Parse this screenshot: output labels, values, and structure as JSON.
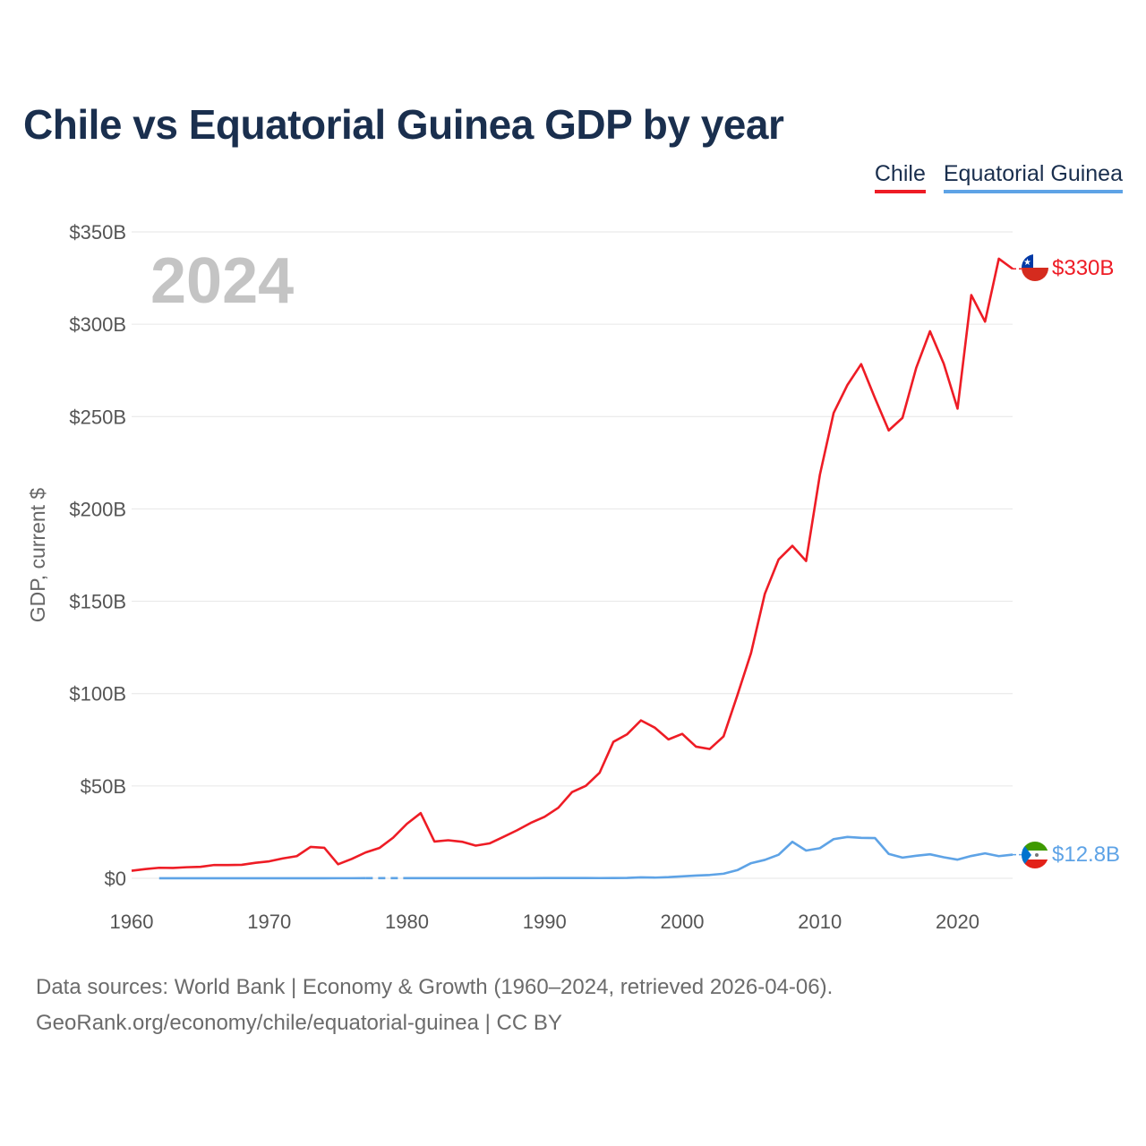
{
  "title": "Chile vs Equatorial Guinea GDP by year",
  "legend": [
    {
      "name": "Chile",
      "color": "#ee1c25"
    },
    {
      "name": "Equatorial Guinea",
      "color": "#5ea3e6"
    }
  ],
  "chart_data": {
    "type": "line",
    "title": "Chile vs Equatorial Guinea GDP by year",
    "xlabel": "",
    "ylabel": "GDP, current $",
    "xlim": [
      1960,
      2024
    ],
    "ylim": [
      0,
      350
    ],
    "y_unit": "billions USD",
    "grid": true,
    "legend_position": "top-right",
    "current_year_label": "2024",
    "x_ticks": [
      1960,
      1970,
      1980,
      1990,
      2000,
      2010,
      2020
    ],
    "x_tick_labels": [
      "1960",
      "1970",
      "1980",
      "1990",
      "2000",
      "2010",
      "2020"
    ],
    "y_ticks": [
      0,
      50,
      100,
      150,
      200,
      250,
      300,
      350
    ],
    "y_tick_labels": [
      "$0",
      "$50B",
      "$100B",
      "$150B",
      "$200B",
      "$250B",
      "$300B",
      "$350B"
    ],
    "series": [
      {
        "name": "Chile",
        "color": "#ee1c25",
        "end_label": "$330B",
        "x": [
          1960,
          1961,
          1962,
          1963,
          1964,
          1965,
          1966,
          1967,
          1968,
          1969,
          1970,
          1971,
          1972,
          1973,
          1974,
          1975,
          1976,
          1977,
          1978,
          1979,
          1980,
          1981,
          1982,
          1983,
          1984,
          1985,
          1986,
          1987,
          1988,
          1989,
          1990,
          1991,
          1992,
          1993,
          1994,
          1995,
          1996,
          1997,
          1998,
          1999,
          2000,
          2001,
          2002,
          2003,
          2004,
          2005,
          2006,
          2007,
          2008,
          2009,
          2010,
          2011,
          2012,
          2013,
          2014,
          2015,
          2016,
          2017,
          2018,
          2019,
          2020,
          2021,
          2022,
          2023,
          2024
        ],
        "values": [
          4.1,
          5.0,
          5.7,
          5.6,
          6.0,
          6.2,
          7.2,
          7.2,
          7.3,
          8.4,
          9.2,
          10.8,
          12.0,
          17.0,
          16.5,
          7.6,
          10.5,
          14.0,
          16.4,
          22.0,
          29.5,
          35.3,
          19.9,
          20.6,
          19.8,
          17.7,
          18.9,
          22.4,
          26.0,
          30.0,
          33.3,
          38.2,
          46.7,
          50.1,
          57.2,
          73.9,
          78.0,
          85.5,
          81.6,
          75.2,
          78.2,
          71.3,
          70.0,
          76.8,
          99.0,
          122.0,
          154.0,
          172.6,
          180.0,
          171.8,
          218.5,
          252.0,
          267.1,
          278.4,
          260.0,
          242.5,
          249.3,
          276.4,
          296.2,
          278.6,
          254.3,
          315.8,
          301.4,
          335.5,
          330.0
        ]
      },
      {
        "name": "Equatorial Guinea",
        "color": "#5ea3e6",
        "end_label": "$12.8B",
        "gap_years": [
          1978,
          1979
        ],
        "x": [
          1962,
          1963,
          1964,
          1965,
          1966,
          1967,
          1968,
          1969,
          1970,
          1971,
          1972,
          1973,
          1974,
          1975,
          1976,
          1977,
          1978,
          1979,
          1980,
          1981,
          1982,
          1983,
          1984,
          1985,
          1986,
          1987,
          1988,
          1989,
          1990,
          1991,
          1992,
          1993,
          1994,
          1995,
          1996,
          1997,
          1998,
          1999,
          2000,
          2001,
          2002,
          2003,
          2004,
          2005,
          2006,
          2007,
          2008,
          2009,
          2010,
          2011,
          2012,
          2013,
          2014,
          2015,
          2016,
          2017,
          2018,
          2019,
          2020,
          2021,
          2022,
          2023,
          2024
        ],
        "values": [
          0.03,
          0.03,
          0.03,
          0.04,
          0.04,
          0.04,
          0.04,
          0.04,
          0.04,
          0.04,
          0.05,
          0.05,
          0.05,
          0.06,
          0.06,
          0.07,
          0.07,
          0.07,
          0.08,
          0.08,
          0.08,
          0.08,
          0.08,
          0.09,
          0.1,
          0.1,
          0.1,
          0.1,
          0.13,
          0.13,
          0.16,
          0.15,
          0.12,
          0.14,
          0.23,
          0.5,
          0.37,
          0.62,
          1.05,
          1.5,
          1.81,
          2.48,
          4.4,
          8.2,
          9.97,
          12.75,
          19.75,
          15.03,
          16.3,
          21.2,
          22.4,
          21.9,
          21.8,
          13.2,
          11.2,
          12.2,
          13.0,
          11.4,
          10.1,
          12.1,
          13.5,
          12.0,
          12.8
        ]
      }
    ]
  },
  "footer": {
    "line1": "Data sources: World Bank | Economy & Growth (1960–2024, retrieved 2026-04-06).",
    "line2": "GeoRank.org/economy/chile/equatorial-guinea | CC BY"
  }
}
